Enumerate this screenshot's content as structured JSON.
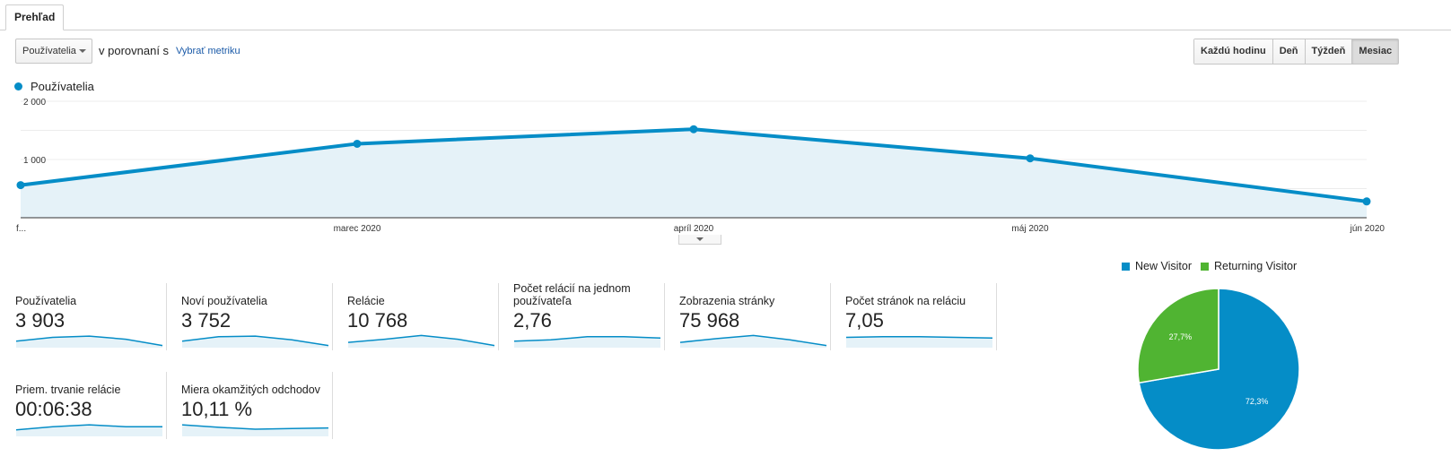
{
  "tabs": {
    "overview_label": "Prehľad"
  },
  "controls": {
    "metric_select_value": "Používatelia",
    "compare_text": "v porovnaní s",
    "choose_metric_label": "Vybrať metriku",
    "granularity": [
      {
        "label": "Každú hodinu",
        "active": false
      },
      {
        "label": "Deň",
        "active": false
      },
      {
        "label": "Týždeň",
        "active": false
      },
      {
        "label": "Mesiac",
        "active": true
      }
    ]
  },
  "legend": {
    "series_label": "Používatelia",
    "color": "#058dc7"
  },
  "chart_data": [
    {
      "type": "area",
      "x": [
        "f...",
        "marec 2020",
        "apríl 2020",
        "máj 2020",
        "jún 2020"
      ],
      "series": [
        {
          "name": "Používatelia",
          "values": [
            560,
            1270,
            1520,
            1020,
            280
          ]
        }
      ],
      "y_ticks": [
        "2 000",
        "1 000"
      ],
      "ylim": [
        0,
        2000
      ],
      "grid": true,
      "color": "#058dc7",
      "fill": "#e5f2f8"
    },
    {
      "type": "pie",
      "labels": [
        "New Visitor",
        "Returning Visitor"
      ],
      "values": [
        72.3,
        27.7
      ],
      "value_labels": [
        "72,3%",
        "27,7%"
      ],
      "colors": [
        "#058dc7",
        "#50b432"
      ],
      "legend": "top"
    }
  ],
  "scorecards": [
    {
      "label": "Používatelia",
      "value": "3 903",
      "spark": [
        0.45,
        0.75,
        0.85,
        0.6,
        0.1
      ]
    },
    {
      "label": "Noví používatelia",
      "value": "3 752",
      "spark": [
        0.45,
        0.8,
        0.85,
        0.55,
        0.1
      ]
    },
    {
      "label": "Relácie",
      "value": "10 768",
      "spark": [
        0.35,
        0.6,
        0.9,
        0.6,
        0.1
      ]
    },
    {
      "label": "Počet relácií na jednom používateľa",
      "value": "2,76",
      "spark": [
        0.45,
        0.55,
        0.8,
        0.8,
        0.7
      ]
    },
    {
      "label": "Zobrazenia stránky",
      "value": "75 968",
      "spark": [
        0.35,
        0.65,
        0.9,
        0.55,
        0.1
      ]
    },
    {
      "label": "Počet stránok na reláciu",
      "value": "7,05",
      "spark": [
        0.75,
        0.8,
        0.8,
        0.75,
        0.7
      ]
    },
    {
      "label": "Priem. trvanie relácie",
      "value": "00:06:38",
      "spark": [
        0.45,
        0.7,
        0.85,
        0.7,
        0.7
      ]
    },
    {
      "label": "Miera okamžitých odchodov",
      "value": "10,11 %",
      "spark": [
        0.85,
        0.65,
        0.5,
        0.55,
        0.6
      ]
    }
  ]
}
